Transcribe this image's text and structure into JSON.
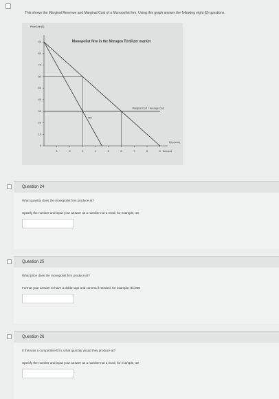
{
  "intro": "This shows the Marginal Revenue and Marginal Cost of a Monopolist firm. Using this graph answer the following eight (8) questions.",
  "chart_data": {
    "type": "line",
    "title": "Monopolist firm in the Nitrogen Fertilizer market",
    "x_label": "Qty (units)",
    "y_label": "Price/Unit ($)",
    "x": [
      0,
      3,
      4.5,
      6,
      9
    ],
    "series": [
      {
        "name": "Demand",
        "color": "#333333",
        "values": [
          90,
          60,
          45,
          30,
          0
        ]
      },
      {
        "name": "MR",
        "color": "#333333",
        "values": [
          90,
          30,
          0,
          null,
          null
        ]
      },
      {
        "name": "Marginal Cost = Average Cost",
        "color": "#333333",
        "values": [
          30,
          30,
          30,
          30,
          30
        ]
      }
    ],
    "xlim": [
      0,
      9.6
    ],
    "ylim": [
      0,
      96
    ],
    "xticks": [
      1,
      2,
      3,
      4,
      5,
      6,
      7,
      8,
      9
    ],
    "yticks": [
      0,
      10,
      20,
      30,
      40,
      50,
      60,
      70,
      80,
      90
    ]
  },
  "questions": [
    {
      "title": "Question 24",
      "prompt": "What quantity does the monopolist firm produce at?",
      "instruction": "Specify the number and input your answer as a number not a word, for example, 18"
    },
    {
      "title": "Question 25",
      "prompt": "What price does the monopolist firm produce at?",
      "instruction": "Format your answer to have a dollar sign and comma if needed, for example, $1,000"
    },
    {
      "title": "Question 26",
      "prompt": "If this was a competitive firm, what quantity would they produce at?",
      "instruction": "Specify the number and input your answer as a number not a word, for example, 18"
    }
  ]
}
